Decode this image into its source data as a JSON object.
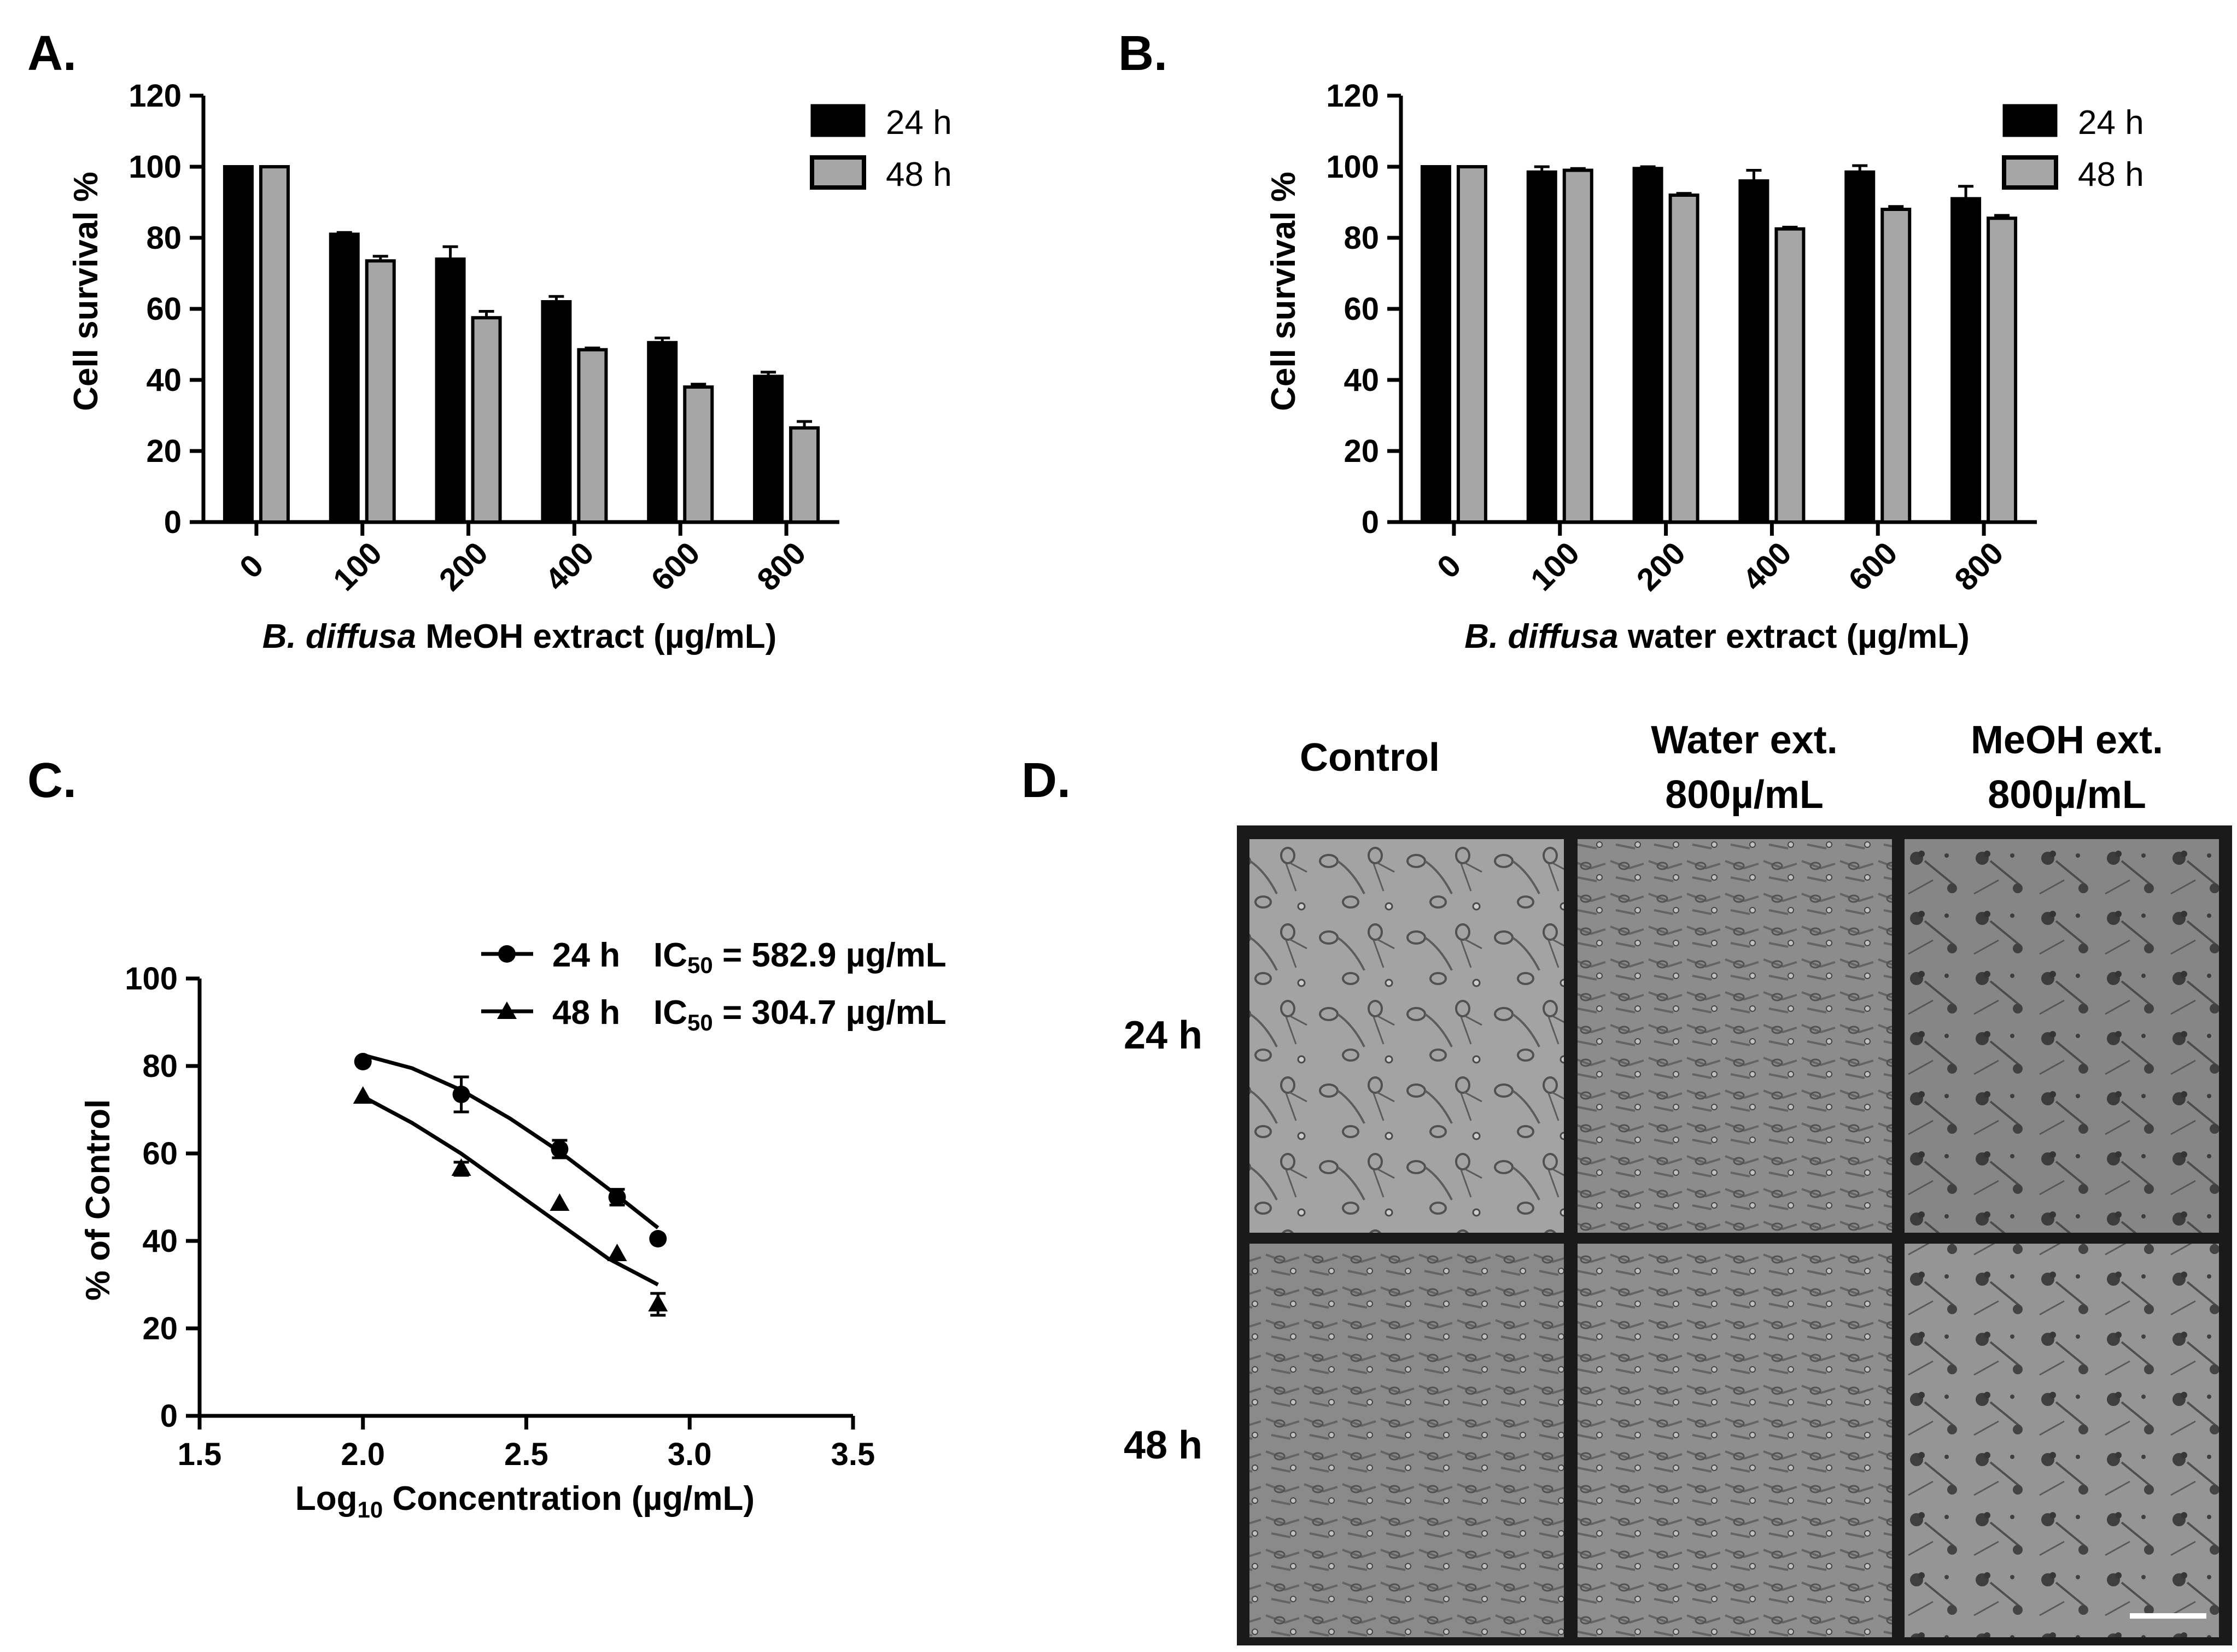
{
  "panels": {
    "a": {
      "letter": "A."
    },
    "b": {
      "letter": "B."
    },
    "c": {
      "letter": "C."
    },
    "d": {
      "letter": "D."
    }
  },
  "colors": {
    "bar_24h": "#000000",
    "bar_48h": "#a6a6a6",
    "frame": "#1a1a1a"
  },
  "chart_data": [
    {
      "id": "A",
      "type": "bar",
      "xlabel_italic": "B. diffusa",
      "xlabel_rest": " MeOH extract (µg/mL)",
      "ylabel": "Cell survival %",
      "ylim": [
        0,
        120
      ],
      "yticks": [
        "0",
        "20",
        "40",
        "60",
        "80",
        "100",
        "120"
      ],
      "categories": [
        "0",
        "100",
        "200",
        "400",
        "600",
        "800"
      ],
      "series": [
        {
          "name": "24 h",
          "values": [
            100,
            81,
            74,
            62,
            50.5,
            41
          ],
          "errors": [
            0,
            0.5,
            3.5,
            1.5,
            1.3,
            1.2
          ]
        },
        {
          "name": "48 h",
          "values": [
            100,
            73.5,
            57.5,
            48.5,
            38,
            26.5
          ],
          "errors": [
            0,
            1.3,
            1.8,
            0.5,
            0.8,
            1.8
          ]
        }
      ]
    },
    {
      "id": "B",
      "type": "bar",
      "xlabel_italic": "B. diffusa",
      "xlabel_rest": " water extract (µg/mL)",
      "ylabel": "Cell survival %",
      "ylim": [
        0,
        120
      ],
      "yticks": [
        "0",
        "20",
        "40",
        "60",
        "80",
        "100",
        "120"
      ],
      "categories": [
        "0",
        "100",
        "200",
        "400",
        "600",
        "800"
      ],
      "series": [
        {
          "name": "24 h",
          "values": [
            100,
            98.5,
            99.5,
            96,
            98.5,
            91
          ],
          "errors": [
            0,
            1.5,
            0.5,
            3,
            1.8,
            3.5
          ]
        },
        {
          "name": "48 h",
          "values": [
            100,
            99,
            92,
            82.5,
            88,
            85.5
          ],
          "errors": [
            0,
            0.5,
            0.5,
            0.5,
            0.8,
            0.8
          ]
        }
      ]
    },
    {
      "id": "C",
      "type": "scatter",
      "xlabel_pre": "Log",
      "xlabel_sub": "10",
      "xlabel_post": " Concentration (µg/mL)",
      "ylabel": "% of Control",
      "xlim": [
        1.5,
        3.5
      ],
      "ylim": [
        0,
        100
      ],
      "xticks": [
        "1.5",
        "2.0",
        "2.5",
        "3.0",
        "3.5"
      ],
      "yticks": [
        "0",
        "20",
        "40",
        "60",
        "80",
        "100"
      ],
      "series": [
        {
          "name": "24 h",
          "marker": "circle",
          "ic50_pre": "IC",
          "ic50_sub": "50",
          "ic50_post": " = 582.9 µg/mL",
          "x": [
            2.0,
            2.301,
            2.602,
            2.778,
            2.903
          ],
          "y": [
            81,
            73.5,
            61,
            50,
            40.5
          ],
          "errors": [
            0.5,
            4,
            2,
            1.8,
            0.8
          ],
          "fit_x": [
            2.0,
            2.15,
            2.3,
            2.45,
            2.6,
            2.75,
            2.903
          ],
          "fit_y": [
            82.5,
            79.5,
            74.5,
            68,
            60.5,
            52,
            43
          ]
        },
        {
          "name": "48 h",
          "marker": "triangle",
          "ic50_pre": "IC",
          "ic50_sub": "50",
          "ic50_post": " = 304.7 µg/mL",
          "x": [
            2.0,
            2.301,
            2.602,
            2.778,
            2.903
          ],
          "y": [
            73,
            56.5,
            48.5,
            37,
            25.5
          ],
          "errors": [
            0.5,
            1.5,
            0.5,
            0.5,
            2.5
          ],
          "fit_x": [
            2.0,
            2.15,
            2.3,
            2.45,
            2.6,
            2.75,
            2.903
          ],
          "fit_y": [
            73,
            67,
            60,
            52,
            44,
            36,
            30
          ]
        }
      ]
    }
  ],
  "micrographs": {
    "columns": [
      {
        "line1": "Control",
        "line2": ""
      },
      {
        "line1": "Water ext.",
        "line2": "800µ/mL"
      },
      {
        "line1": "MeOH ext.",
        "line2": "800µ/mL"
      }
    ],
    "rows": [
      "24 h",
      "48 h"
    ],
    "tile_tones": [
      [
        "#a3a3a3",
        "#8c8c8c",
        "#868686"
      ],
      [
        "#8a8a8a",
        "#8e8e8e",
        "#959595"
      ]
    ]
  }
}
